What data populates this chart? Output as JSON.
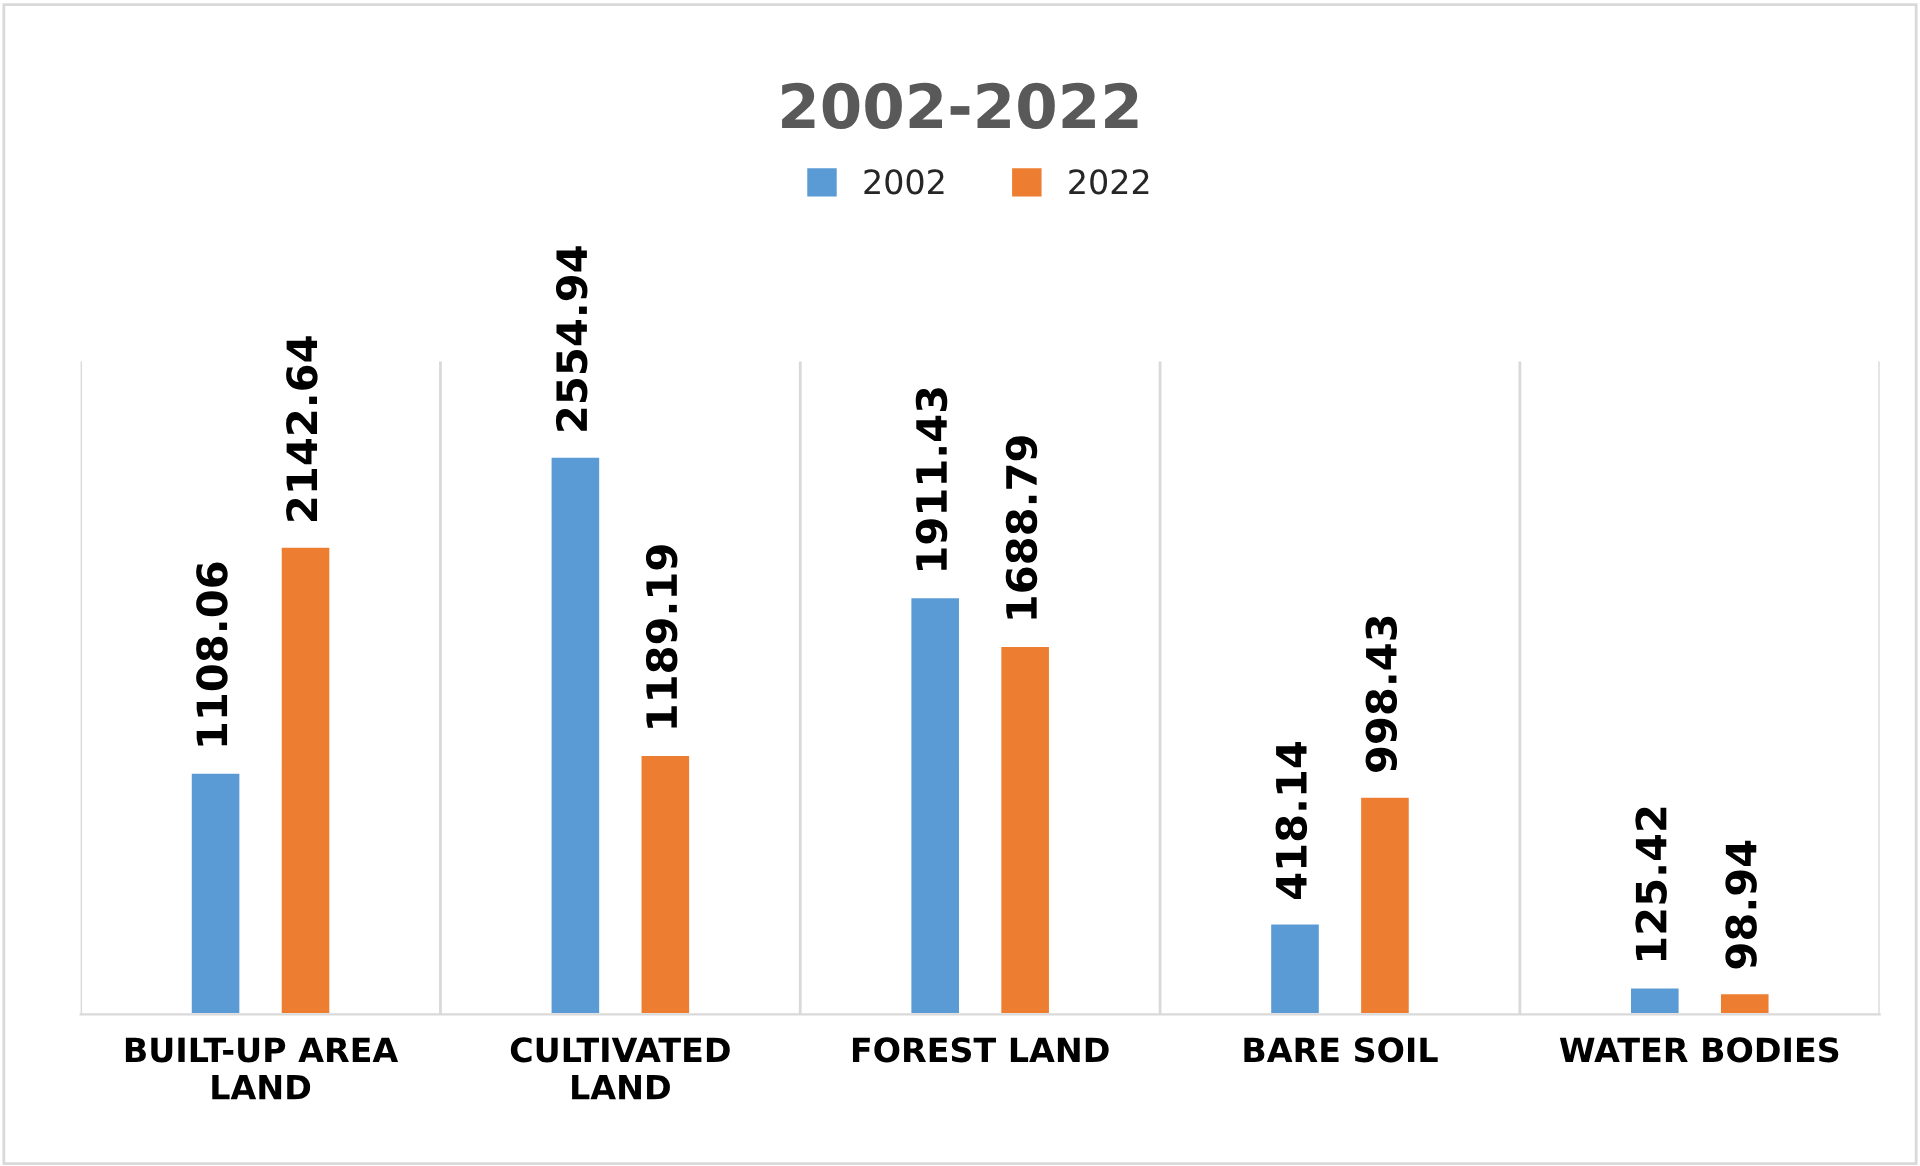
{
  "chart_data": {
    "type": "bar",
    "title": "2002-2022",
    "categories": [
      "BUILT-UP AREA\nLAND",
      "CULTIVATED\nLAND",
      "FOREST LAND",
      "BARE SOIL",
      "WATER BODIES"
    ],
    "series": [
      {
        "name": "2002",
        "color": "#5b9bd5",
        "values": [
          1108.06,
          2554.94,
          1911.43,
          418.14,
          125.42
        ]
      },
      {
        "name": "2022",
        "color": "#ed7d31",
        "values": [
          2142.64,
          1189.19,
          1688.79,
          998.43,
          98.94
        ]
      }
    ],
    "data_labels": true,
    "legend": "top",
    "grid": "x"
  }
}
